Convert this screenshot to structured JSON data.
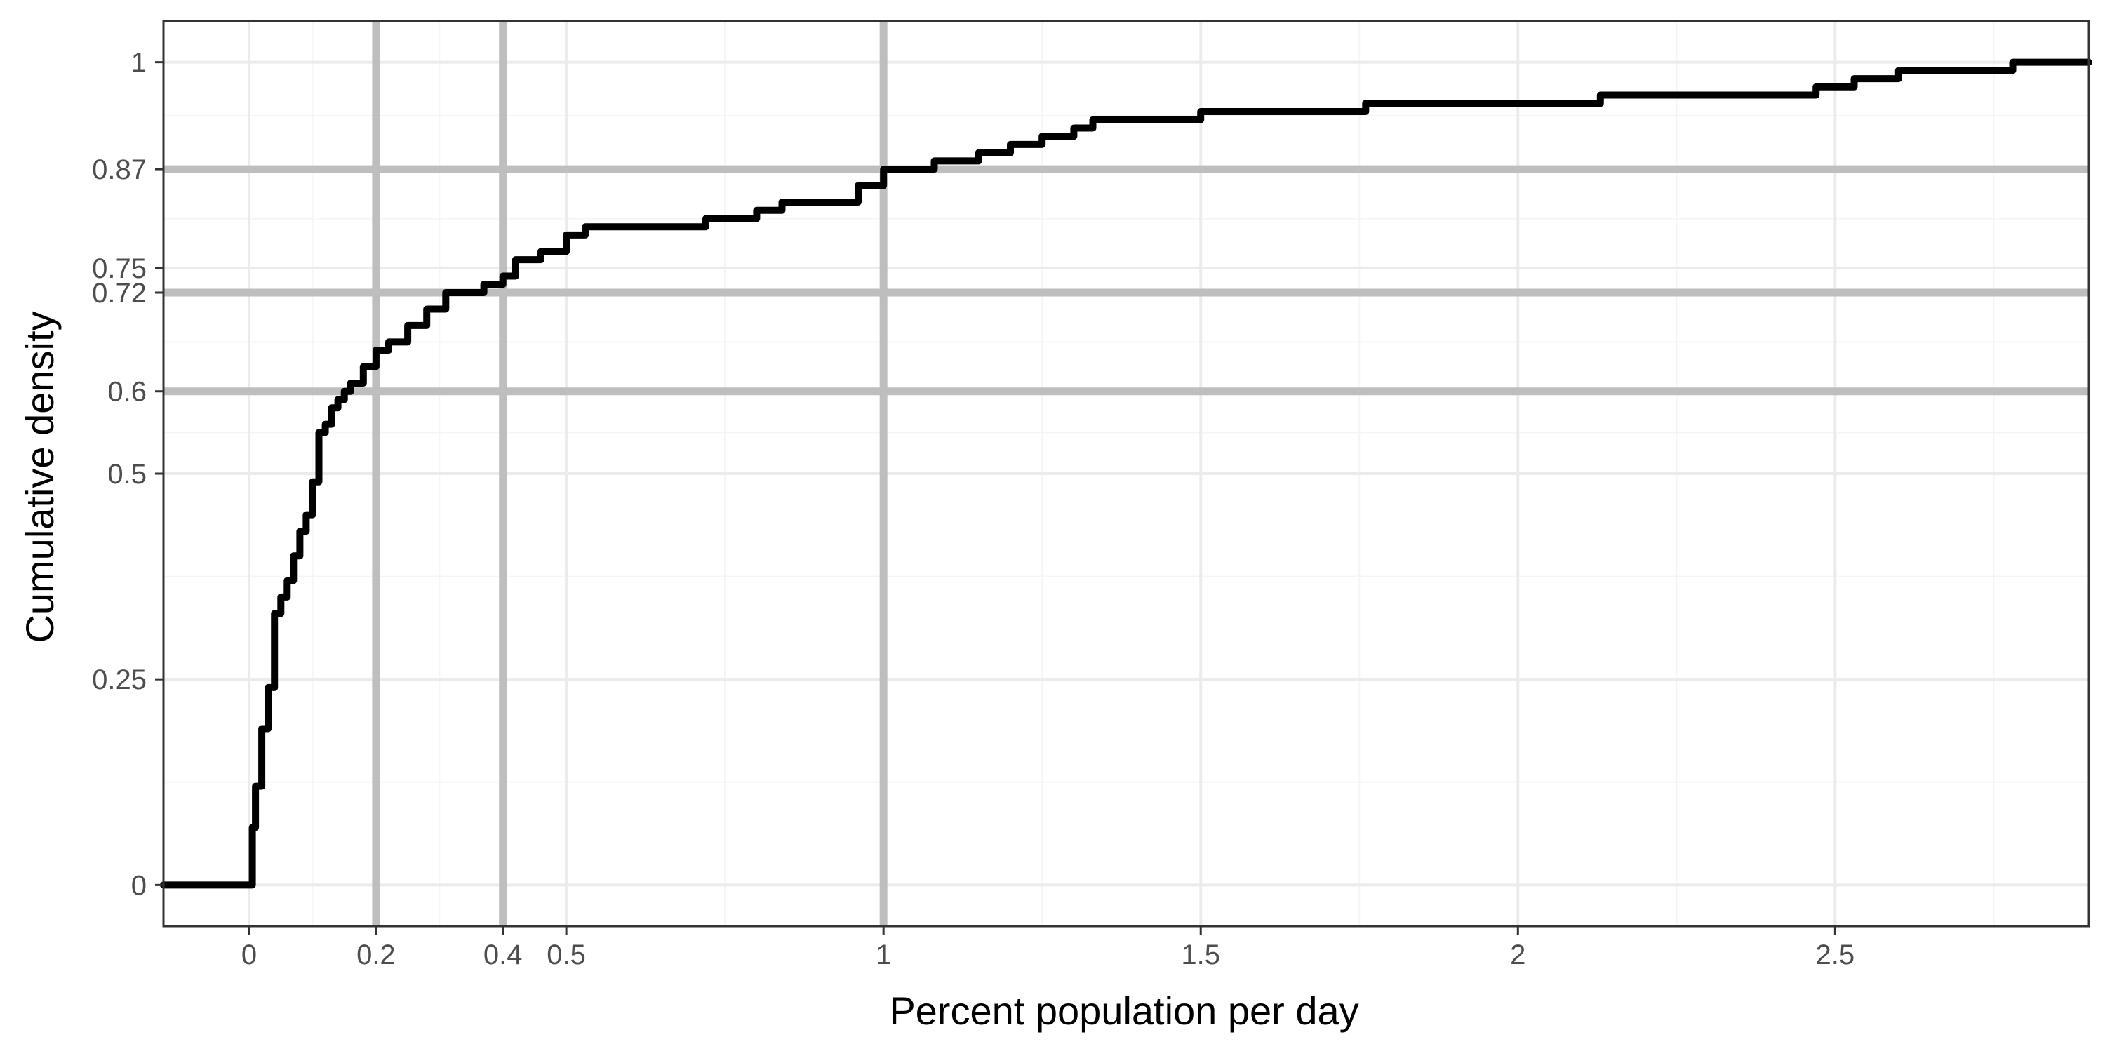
{
  "chart_data": {
    "type": "line",
    "subtype": "step",
    "title": "",
    "xlabel": "Percent population per day",
    "ylabel": "Cumulative density",
    "xlim": [
      -0.135,
      2.9
    ],
    "ylim": [
      -0.05,
      1.05
    ],
    "x_ticks": [
      0,
      0.2,
      0.4,
      0.5,
      1,
      1.5,
      2,
      2.5
    ],
    "x_tick_labels": [
      "0",
      "0.2",
      "0.4",
      "0.5",
      "1",
      "1.5",
      "2",
      "2.5"
    ],
    "x_minor_gridlines": [
      0.1,
      0.3,
      0.75,
      1.25,
      1.75,
      2.25,
      2.75
    ],
    "y_ticks": [
      0,
      0.25,
      0.5,
      0.6,
      0.72,
      0.75,
      0.87,
      1
    ],
    "y_tick_labels": [
      "0",
      "0.25",
      "0.5",
      "0.6",
      "0.72",
      "0.75",
      "0.87",
      "1"
    ],
    "y_minor_gridlines": [
      0.125,
      0.375,
      0.55,
      0.66,
      0.81,
      0.935
    ],
    "reference_lines": {
      "vertical": [
        0.2,
        0.4,
        1.0
      ],
      "horizontal": [
        0.6,
        0.72,
        0.87
      ]
    },
    "grid": true,
    "legend": "none",
    "colors": {
      "line": "#000000",
      "reference": "#bebebe",
      "grid_major": "#ebebeb",
      "grid_minor": "#f5f5f5",
      "panel_border": "#333333",
      "tick_text": "#4d4d4d"
    },
    "series": [
      {
        "x": [
          -0.135,
          0.0,
          0.005,
          0.01,
          0.02,
          0.03,
          0.04,
          0.05,
          0.06,
          0.07,
          0.08,
          0.09,
          0.1,
          0.11,
          0.12,
          0.13,
          0.14,
          0.15,
          0.16,
          0.18,
          0.2,
          0.22,
          0.24,
          0.25,
          0.28,
          0.3,
          0.31,
          0.33,
          0.35,
          0.37,
          0.4,
          0.42,
          0.44,
          0.46,
          0.5,
          0.53,
          0.56,
          0.6,
          0.72,
          0.8,
          0.84,
          0.9,
          0.96,
          1.0,
          1.03,
          1.08,
          1.15,
          1.2,
          1.25,
          1.3,
          1.33,
          1.38,
          1.5,
          1.72,
          1.76,
          2.13,
          2.47,
          2.53,
          2.57,
          2.6,
          2.78,
          2.9
        ],
        "y": [
          0,
          0,
          0.07,
          0.12,
          0.19,
          0.24,
          0.33,
          0.35,
          0.37,
          0.4,
          0.43,
          0.45,
          0.49,
          0.55,
          0.56,
          0.58,
          0.59,
          0.6,
          0.61,
          0.63,
          0.65,
          0.66,
          0.66,
          0.68,
          0.7,
          0.7,
          0.72,
          0.72,
          0.72,
          0.73,
          0.74,
          0.76,
          0.76,
          0.77,
          0.79,
          0.8,
          0.8,
          0.8,
          0.81,
          0.82,
          0.83,
          0.83,
          0.85,
          0.87,
          0.87,
          0.88,
          0.89,
          0.9,
          0.91,
          0.92,
          0.93,
          0.93,
          0.94,
          0.94,
          0.95,
          0.96,
          0.97,
          0.98,
          0.98,
          0.99,
          1.0,
          1.0
        ]
      }
    ]
  }
}
